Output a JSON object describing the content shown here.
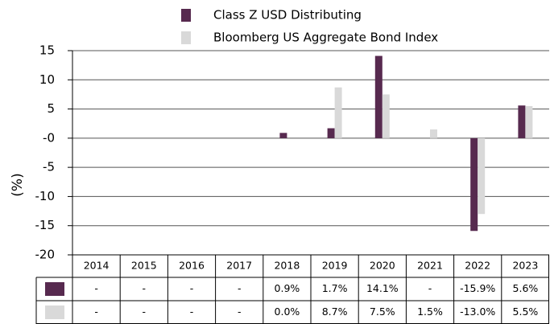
{
  "chart_data": {
    "type": "bar",
    "y_label": "(%)",
    "categories": [
      "2014",
      "2015",
      "2016",
      "2017",
      "2018",
      "2019",
      "2020",
      "2021",
      "2022",
      "2023"
    ],
    "series": [
      {
        "name": "Class Z USD Distributing",
        "color": "#572a4f",
        "values": [
          null,
          null,
          null,
          null,
          0.9,
          1.7,
          14.1,
          null,
          -15.9,
          5.6
        ],
        "value_labels": [
          "-",
          "-",
          "-",
          "-",
          "0.9%",
          "1.7%",
          "14.1%",
          "-",
          "-15.9%",
          "5.6%"
        ]
      },
      {
        "name": "Bloomberg US Aggregate Bond Index",
        "color": "#d9d9d9",
        "values": [
          null,
          null,
          null,
          null,
          0.0,
          8.7,
          7.5,
          1.5,
          -13.0,
          5.5
        ],
        "value_labels": [
          "-",
          "-",
          "-",
          "-",
          "0.0%",
          "8.7%",
          "7.5%",
          "1.5%",
          "-13.0%",
          "5.5%"
        ]
      }
    ],
    "ylim": [
      -20,
      15
    ],
    "yticks": [
      15,
      10,
      5,
      {
        "value": 0,
        "label": "-0"
      },
      -5,
      -10,
      -15,
      -20
    ],
    "grid": true
  }
}
